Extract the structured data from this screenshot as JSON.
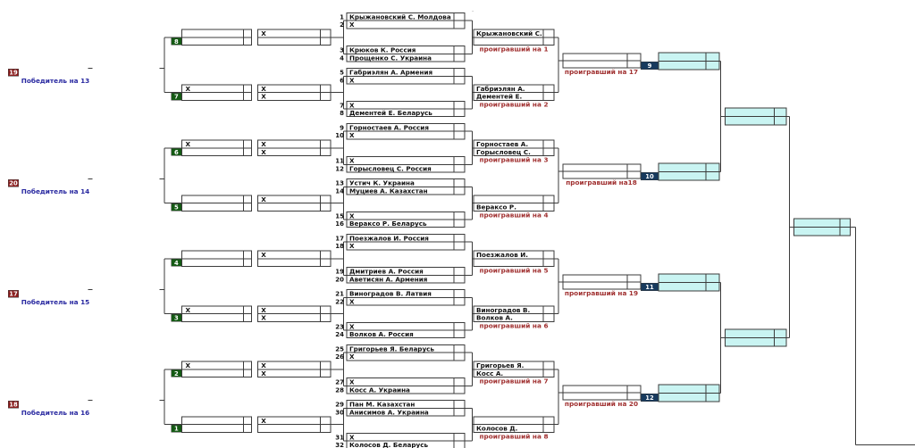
{
  "colors": {
    "border": "#3b3b3b",
    "box_white": "#ffffff",
    "box_cyan": "#c9f4f2",
    "green_badge": "#145a14",
    "red_badge": "#8b1d1d",
    "navy_badge": "#173a5e",
    "badge_text": "#ffffff",
    "name_text": "#101010",
    "winner_label_blue": "#2828a0",
    "loser_label_red": "#a03030"
  },
  "players": [
    {
      "num": "1",
      "name": "Крыжановский С. Молдова"
    },
    {
      "num": "2",
      "name": "X"
    },
    {
      "num": "3",
      "name": "Крюков К. Россия"
    },
    {
      "num": "4",
      "name": "Прощенко С. Украина"
    },
    {
      "num": "5",
      "name": "Габриэлян А. Армения"
    },
    {
      "num": "6",
      "name": "X"
    },
    {
      "num": "7",
      "name": "X"
    },
    {
      "num": "8",
      "name": "Дементей Е. Беларусь"
    },
    {
      "num": "9",
      "name": "Горностаев А. Россия"
    },
    {
      "num": "10",
      "name": "X"
    },
    {
      "num": "11",
      "name": "X"
    },
    {
      "num": "12",
      "name": "Горысловец С. Россия"
    },
    {
      "num": "13",
      "name": "Устич К. Украина"
    },
    {
      "num": "14",
      "name": "Муциев А. Казахстан"
    },
    {
      "num": "15",
      "name": "X"
    },
    {
      "num": "16",
      "name": "Вераксо Р. Беларусь"
    },
    {
      "num": "17",
      "name": "Поезжалов И. Россия"
    },
    {
      "num": "18",
      "name": "X"
    },
    {
      "num": "19",
      "name": "Дмитриев А. Россия"
    },
    {
      "num": "20",
      "name": "Аветисян А. Армения"
    },
    {
      "num": "21",
      "name": "Виноградов В. Латвия"
    },
    {
      "num": "22",
      "name": "X"
    },
    {
      "num": "23",
      "name": "X"
    },
    {
      "num": "24",
      "name": "Волков А. Россия"
    },
    {
      "num": "25",
      "name": "Григорьев Я. Беларусь"
    },
    {
      "num": "26",
      "name": "X"
    },
    {
      "num": "27",
      "name": "X"
    },
    {
      "num": "28",
      "name": "Косс А. Украина"
    },
    {
      "num": "29",
      "name": "Пан М. Казахстан"
    },
    {
      "num": "30",
      "name": "Анисимов А. Украина"
    },
    {
      "num": "31",
      "name": "X"
    },
    {
      "num": "32",
      "name": "Колосов Д. Беларусь"
    }
  ],
  "round2_matches": [
    {
      "top": "Крыжановский С.",
      "bottom": "",
      "loser_label": "проигравший на 1"
    },
    {
      "top": "Габриэлян А.",
      "bottom": "Дементей Е.",
      "loser_label": "проигравший на 2"
    },
    {
      "top": "Горностаев А.",
      "bottom": "Горысловец С.",
      "loser_label": "проигравший на 3"
    },
    {
      "top": "",
      "bottom": "Вераксо Р.",
      "loser_label": "проигравший на 4"
    },
    {
      "top": "Поезжалов И.",
      "bottom": "",
      "loser_label": "проигравший на 5"
    },
    {
      "top": "Виноградов В.",
      "bottom": "Волков А.",
      "loser_label": "проигравший на 6"
    },
    {
      "top": "Григорьев Я.",
      "bottom": "Косс А.",
      "loser_label": "проигравший на 7"
    },
    {
      "top": "",
      "bottom": "Колосов Д.",
      "loser_label": "проигравший на 8"
    }
  ],
  "quarterfinals": [
    {
      "match_number": "9",
      "loser_label": "проигравший на 17"
    },
    {
      "match_number": "10",
      "loser_label": "проигравший на18"
    },
    {
      "match_number": "11",
      "loser_label": "проигравший на 19"
    },
    {
      "match_number": "12",
      "loser_label": "проигравший на 20"
    }
  ],
  "repechage_groups": [
    {
      "match_number": "8",
      "box1": [
        "",
        ""
      ],
      "box2": [
        "X",
        ""
      ]
    },
    {
      "match_number": "7",
      "box1": [
        "X",
        ""
      ],
      "box2": [
        "X",
        "X"
      ]
    },
    {
      "match_number": "6",
      "box1": [
        "X",
        ""
      ],
      "box2": [
        "X",
        "X"
      ]
    },
    {
      "match_number": "5",
      "box1": [
        "",
        ""
      ],
      "box2": [
        "X",
        ""
      ]
    },
    {
      "match_number": "4",
      "box1": [
        "",
        ""
      ],
      "box2": [
        "X",
        ""
      ]
    },
    {
      "match_number": "3",
      "box1": [
        "X",
        ""
      ],
      "box2": [
        "X",
        "X"
      ]
    },
    {
      "match_number": "2",
      "box1": [
        "X",
        ""
      ],
      "box2": [
        "X",
        "X"
      ]
    },
    {
      "match_number": "1",
      "box1": [
        "",
        ""
      ],
      "box2": [
        "X",
        ""
      ]
    }
  ],
  "repechage_finals": [
    {
      "match_number": "19",
      "winner_label": "Победитель на 13"
    },
    {
      "match_number": "20",
      "winner_label": "Победитель на 14"
    },
    {
      "match_number": "17",
      "winner_label": "Победитель на 15"
    },
    {
      "match_number": "18",
      "winner_label": "Победитель на 16"
    }
  ],
  "stray_mark": "-"
}
